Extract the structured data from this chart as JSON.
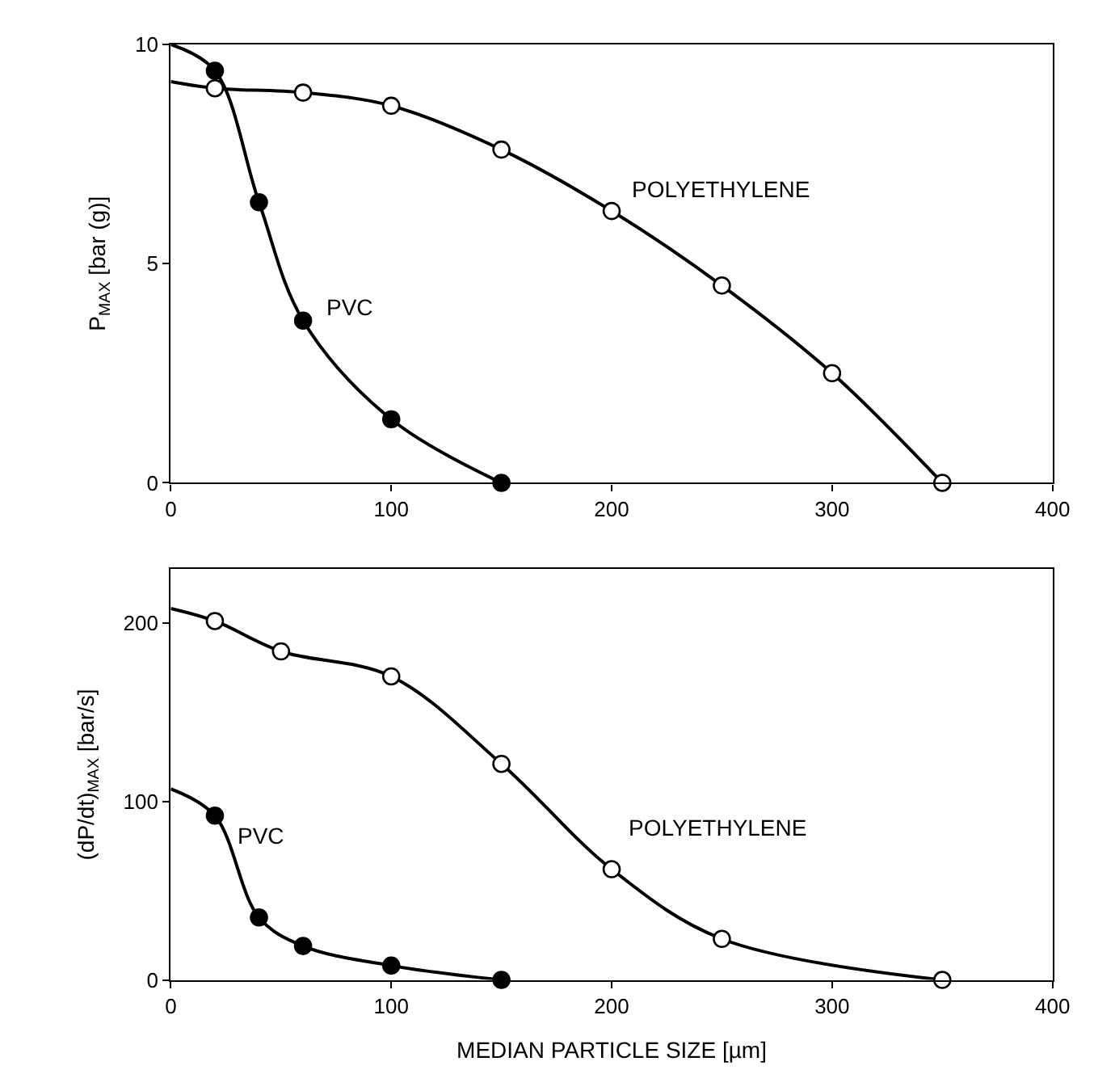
{
  "chart_data": [
    {
      "type": "scatter",
      "ylabel": "P$_{MAX}$ [bar (g)]",
      "xlim": [
        0,
        400
      ],
      "xticks": [
        0,
        100,
        200,
        300,
        400
      ],
      "ylim": [
        0,
        10
      ],
      "yticks": [
        0,
        5,
        10
      ],
      "legend": false,
      "marker": "circle",
      "series": [
        {
          "type": "line",
          "name": "PVC",
          "color": "#000000",
          "marker": "none",
          "x": [
            0,
            20,
            40,
            60,
            100,
            150
          ],
          "values": [
            10,
            9.4,
            6.4,
            3.7,
            1.45,
            0
          ]
        },
        {
          "type": "line",
          "name": "POLYETHYLENE",
          "color": "#000000",
          "marker": "none",
          "x": [
            0,
            20,
            60,
            100,
            150,
            200,
            250,
            300,
            350
          ],
          "values": [
            9.15,
            9.0,
            8.9,
            8.6,
            7.6,
            6.2,
            4.5,
            2.5,
            0
          ]
        },
        {
          "color": "#000000",
          "x": [
            20,
            40,
            60,
            100,
            150
          ],
          "values": [
            9.4,
            6.4,
            3.7,
            1.45,
            0
          ]
        },
        {
          "color": "#ffffff",
          "x": [
            20,
            60,
            100,
            150,
            200,
            250,
            300,
            350
          ],
          "values": [
            9.0,
            8.9,
            8.6,
            7.6,
            6.2,
            4.5,
            2.5,
            0
          ]
        }
      ]
    },
    {
      "type": "scatter",
      "ylabel": "(dP/dt)$_{MAX}$ [bar/s]",
      "xlabel": "MEDIAN PARTICLE SIZE [µm]",
      "xlim": [
        0,
        400
      ],
      "xticks": [
        0,
        100,
        200,
        300,
        400
      ],
      "ylim": [
        0,
        230
      ],
      "yticks": [
        0,
        100,
        200
      ],
      "legend": false,
      "marker": "circle",
      "series": [
        {
          "type": "line",
          "name": "PVC",
          "color": "#000000",
          "marker": "none",
          "x": [
            0,
            20,
            40,
            60,
            100,
            150
          ],
          "values": [
            107,
            92,
            35,
            19,
            8,
            0
          ]
        },
        {
          "type": "line",
          "name": "POLYETHYLENE",
          "color": "#000000",
          "marker": "none",
          "x": [
            0,
            20,
            50,
            100,
            150,
            200,
            250,
            350
          ],
          "values": [
            208,
            201,
            184,
            170,
            121,
            62,
            23,
            0
          ]
        },
        {
          "color": "#000000",
          "x": [
            20,
            40,
            60,
            100,
            150
          ],
          "values": [
            92,
            35,
            19,
            8,
            0
          ]
        },
        {
          "color": "#ffffff",
          "x": [
            20,
            50,
            100,
            150,
            200,
            250,
            350
          ],
          "values": [
            201,
            184,
            170,
            121,
            62,
            23,
            0
          ]
        }
      ]
    }
  ]
}
